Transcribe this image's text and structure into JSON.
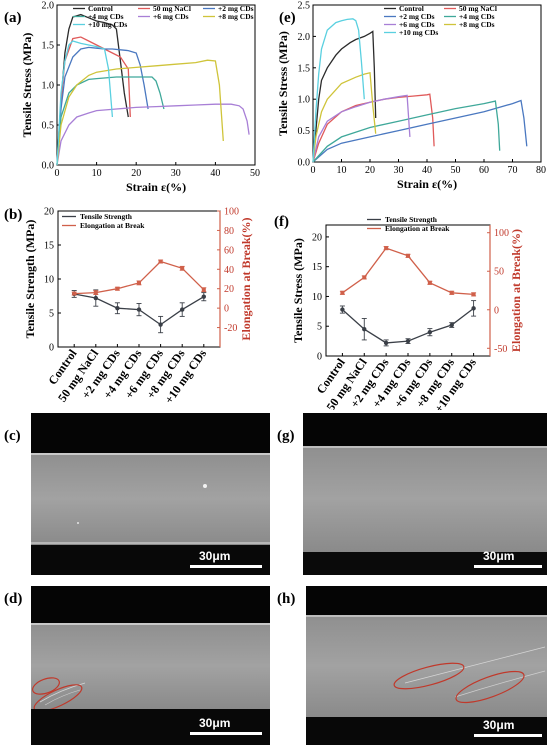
{
  "panel_labels": {
    "a": "(a)",
    "b": "(b)",
    "c": "(c)",
    "d": "(d)",
    "e": "(e)",
    "f": "(f)",
    "g": "(g)",
    "h": "(h)"
  },
  "scale_bar": {
    "c": "30μm",
    "d": "30μm",
    "g": "30μm",
    "h": "30μm"
  },
  "colors": {
    "Control": "#2b2b2b",
    "50 mg NaCl": "#e05a5a",
    "+2 mg CDs": "#4a78c0",
    "+4 mg CDs": "#3fa89a",
    "+6 mg CDs": "#a87fd6",
    "+8 mg CDs": "#cfc43a",
    "+10 mg CDs": "#5ad0e0",
    "strength": "#3a3f47",
    "elongation": "#d0604a"
  },
  "chart_data": [
    {
      "id": "a",
      "type": "line",
      "xlabel": "Strain ε(%)",
      "ylabel": "Tensile Stress (MPa)",
      "xlim": [
        0,
        50
      ],
      "ylim": [
        0,
        2
      ],
      "xticks": [
        0,
        10,
        20,
        30,
        40,
        50
      ],
      "yticks": [
        0.0,
        0.5,
        1.0,
        1.5,
        2.0
      ],
      "legend_position": "top",
      "series": [
        {
          "name": "Control",
          "x": [
            0,
            1,
            2,
            3,
            4,
            6,
            8,
            10,
            12,
            14,
            15,
            16,
            17,
            18
          ],
          "y": [
            0,
            0.8,
            1.4,
            1.7,
            1.85,
            1.88,
            1.84,
            1.8,
            1.78,
            1.75,
            1.7,
            1.3,
            0.9,
            0.6
          ]
        },
        {
          "name": "50 mg NaCl",
          "x": [
            0,
            1,
            2,
            4,
            6,
            8,
            10,
            12,
            14,
            16,
            18,
            18.5
          ],
          "y": [
            0,
            0.8,
            1.3,
            1.58,
            1.6,
            1.55,
            1.5,
            1.45,
            1.4,
            1.35,
            1.2,
            0.6
          ]
        },
        {
          "name": "+2 mg CDs",
          "x": [
            0,
            1,
            2,
            4,
            6,
            8,
            10,
            12,
            14,
            16,
            18,
            20,
            21,
            22,
            23
          ],
          "y": [
            0,
            0.7,
            1.1,
            1.35,
            1.45,
            1.47,
            1.46,
            1.45,
            1.45,
            1.44,
            1.43,
            1.4,
            1.25,
            1.0,
            0.7
          ]
        },
        {
          "name": "+4 mg CDs",
          "x": [
            0,
            1,
            3,
            5,
            8,
            10,
            15,
            20,
            22,
            24,
            25,
            26,
            27
          ],
          "y": [
            0,
            0.6,
            0.9,
            1.0,
            1.07,
            1.08,
            1.1,
            1.1,
            1.1,
            1.1,
            1.05,
            0.9,
            0.7
          ]
        },
        {
          "name": "+6 mg CDs",
          "x": [
            0,
            1,
            3,
            5,
            8,
            10,
            15,
            20,
            25,
            30,
            35,
            40,
            44,
            46,
            47,
            48,
            48.5
          ],
          "y": [
            0,
            0.3,
            0.5,
            0.6,
            0.65,
            0.68,
            0.7,
            0.72,
            0.73,
            0.74,
            0.75,
            0.76,
            0.76,
            0.74,
            0.7,
            0.55,
            0.38
          ]
        },
        {
          "name": "+8 mg CDs",
          "x": [
            0,
            1,
            3,
            5,
            8,
            10,
            15,
            20,
            25,
            30,
            35,
            38,
            40,
            41,
            42
          ],
          "y": [
            0,
            0.5,
            0.85,
            1.0,
            1.12,
            1.16,
            1.2,
            1.22,
            1.24,
            1.26,
            1.28,
            1.31,
            1.3,
            1.0,
            0.3
          ]
        },
        {
          "name": "+10 mg CDs",
          "x": [
            0,
            1,
            2,
            3,
            4,
            6,
            8,
            10,
            12,
            13,
            14
          ],
          "y": [
            0,
            0.9,
            1.3,
            1.5,
            1.55,
            1.52,
            1.5,
            1.48,
            1.45,
            1.2,
            0.6
          ]
        }
      ]
    },
    {
      "id": "e",
      "type": "line",
      "xlabel": "Strain ε(%)",
      "ylabel": "Tensile Stress (MPa)",
      "xlim": [
        0,
        80
      ],
      "ylim": [
        0,
        2.5
      ],
      "xticks": [
        0,
        10,
        20,
        30,
        40,
        50,
        60,
        70,
        80
      ],
      "yticks": [
        0.0,
        0.5,
        1.0,
        1.5,
        2.0,
        2.5
      ],
      "legend_position": "top-right",
      "series": [
        {
          "name": "Control",
          "x": [
            0,
            1,
            2,
            3,
            5,
            8,
            10,
            13,
            15,
            18,
            20,
            21,
            21.5,
            22
          ],
          "y": [
            0,
            0.5,
            1.0,
            1.3,
            1.5,
            1.7,
            1.8,
            1.9,
            1.95,
            2.0,
            2.05,
            2.08,
            1.5,
            0.7
          ]
        },
        {
          "name": "50 mg NaCl",
          "x": [
            0,
            2,
            5,
            10,
            15,
            20,
            25,
            30,
            35,
            40,
            41,
            42,
            42.5
          ],
          "y": [
            0,
            0.3,
            0.6,
            0.8,
            0.9,
            0.95,
            1.0,
            1.03,
            1.05,
            1.07,
            1.08,
            0.7,
            0.25
          ]
        },
        {
          "name": "+2 mg CDs",
          "x": [
            0,
            5,
            10,
            20,
            30,
            40,
            50,
            60,
            70,
            73,
            74,
            75
          ],
          "y": [
            0,
            0.2,
            0.3,
            0.4,
            0.5,
            0.6,
            0.7,
            0.8,
            0.93,
            0.98,
            0.7,
            0.25
          ]
        },
        {
          "name": "+4 mg CDs",
          "x": [
            0,
            5,
            10,
            20,
            30,
            40,
            50,
            60,
            64,
            65,
            65.5
          ],
          "y": [
            0,
            0.25,
            0.4,
            0.55,
            0.65,
            0.75,
            0.85,
            0.93,
            0.97,
            0.6,
            0.18
          ]
        },
        {
          "name": "+6 mg CDs",
          "x": [
            0,
            2,
            5,
            10,
            15,
            20,
            25,
            30,
            33,
            34
          ],
          "y": [
            0,
            0.4,
            0.65,
            0.8,
            0.88,
            0.95,
            1.0,
            1.04,
            1.06,
            0.4
          ]
        },
        {
          "name": "+8 mg CDs",
          "x": [
            0,
            1,
            3,
            5,
            8,
            10,
            15,
            18,
            20,
            21,
            22
          ],
          "y": [
            0,
            0.4,
            0.8,
            1.0,
            1.15,
            1.25,
            1.35,
            1.4,
            1.42,
            0.9,
            0.45
          ]
        },
        {
          "name": "+10 mg CDs",
          "x": [
            0,
            1,
            2,
            3,
            5,
            8,
            10,
            12,
            14,
            15,
            16,
            17,
            18
          ],
          "y": [
            0,
            0.8,
            1.4,
            1.8,
            2.1,
            2.22,
            2.25,
            2.27,
            2.28,
            2.25,
            2.1,
            1.6,
            1.0
          ]
        }
      ]
    },
    {
      "id": "b",
      "type": "line",
      "categories": [
        "Control",
        "50 mg NaCl",
        "+2 mg CDs",
        "+4 mg CDs",
        "+6 mg CDs",
        "+8 mg CDs",
        "+10 mg CDs"
      ],
      "ylabel": "Tensile Strength (MPa)",
      "y2label": "Elongation at Break(%)",
      "ylim": [
        0,
        20
      ],
      "y2lim": [
        -40,
        100
      ],
      "yticks": [
        0,
        5,
        10,
        15,
        20
      ],
      "y2ticks": [
        -20,
        0,
        20,
        40,
        60,
        80,
        100
      ],
      "legend_position": "top-left",
      "series": [
        {
          "name": "Tensile Strength",
          "axis": "left",
          "values": [
            7.8,
            7.2,
            5.7,
            5.5,
            3.3,
            5.5,
            7.4
          ],
          "errors": [
            0.5,
            1.2,
            0.8,
            0.9,
            1.2,
            1.0,
            0.6
          ]
        },
        {
          "name": "Elongation at Break",
          "axis": "right",
          "values": [
            15,
            16,
            20,
            26,
            48,
            41,
            19
          ],
          "errors": [
            1.5,
            2.0,
            1.5,
            2.0,
            1.5,
            2.0,
            2.0
          ]
        }
      ]
    },
    {
      "id": "f",
      "type": "line",
      "categories": [
        "Control",
        "50 mg NaCl",
        "+2 mg CDs",
        "+4 mg CDs",
        "+6 mg CDs",
        "+8 mg CDs",
        "+10 mg CDs"
      ],
      "ylabel": "Tensile Stress (MPa)",
      "y2label": "Elongation at Break(%)",
      "ylim": [
        0,
        22
      ],
      "y2lim": [
        -60,
        110
      ],
      "yticks": [
        0,
        5,
        10,
        15,
        20
      ],
      "y2ticks": [
        -50,
        0,
        50,
        100
      ],
      "legend_position": "top",
      "series": [
        {
          "name": "Tensile Strength",
          "axis": "left",
          "values": [
            7.8,
            4.5,
            2.2,
            2.5,
            4.0,
            5.2,
            8.0
          ],
          "errors": [
            0.6,
            1.8,
            0.5,
            0.4,
            0.6,
            0.4,
            1.3
          ]
        },
        {
          "name": "Elongation at Break",
          "axis": "right",
          "values": [
            22,
            42,
            80,
            70,
            35,
            22,
            20
          ],
          "errors": [
            2,
            2,
            2,
            2,
            2,
            2,
            2
          ]
        }
      ]
    }
  ]
}
